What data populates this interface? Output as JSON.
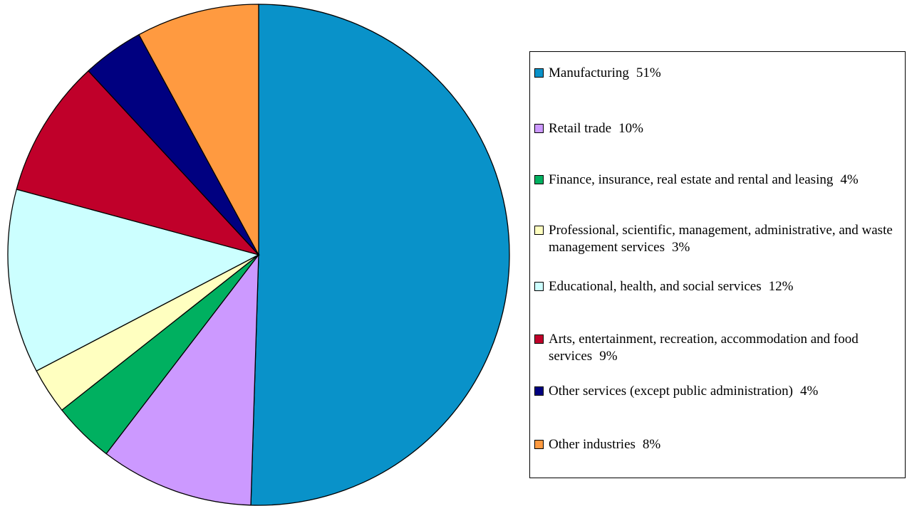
{
  "chart_data": {
    "type": "pie",
    "categories": [
      "Manufacturing",
      "Retail trade",
      "Finance, insurance, real estate and rental and leasing",
      "Professional, scientific, management, administrative, and waste management services",
      "Educational, health, and social services",
      "Arts, entertainment, recreation, accommodation and food services",
      "Other services (except public administration)",
      "Other industries"
    ],
    "values": [
      51,
      10,
      4,
      3,
      12,
      9,
      4,
      8
    ],
    "value_labels": [
      "51%",
      "10%",
      "4%",
      "3%",
      "12%",
      "9%",
      "4%",
      "8%"
    ],
    "colors": [
      "#0992c9",
      "#cc99ff",
      "#00b060",
      "#ffffc0",
      "#ccffff",
      "#c0002a",
      "#000080",
      "#ff9a40"
    ],
    "legend": "right"
  }
}
